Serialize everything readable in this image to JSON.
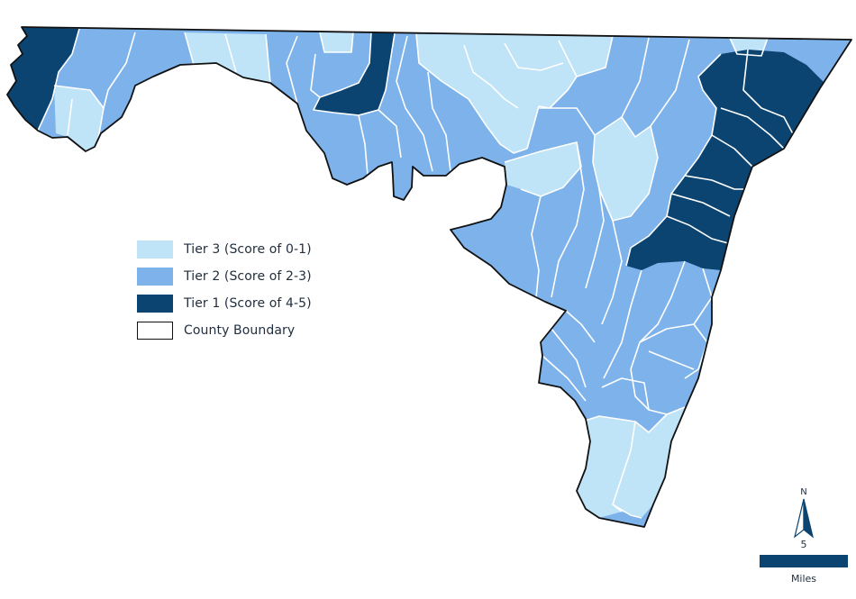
{
  "map": {
    "colors": {
      "tier3": "#bfe3f7",
      "tier2": "#7db2ea",
      "tier1": "#0b4470",
      "subdivision_lines": "#ffffff",
      "county_boundary": "#111111",
      "background": "#ffffff"
    }
  },
  "legend": {
    "items": [
      {
        "label": "Tier 3 (Score of 0-1)",
        "color": "#bfe3f7",
        "outline": "none",
        "icon": "tier3-swatch"
      },
      {
        "label": "Tier 2 (Score of 2-3)",
        "color": "#7db2ea",
        "outline": "none",
        "icon": "tier2-swatch"
      },
      {
        "label": "Tier 1 (Score of 4-5)",
        "color": "#0b4470",
        "outline": "none",
        "icon": "tier1-swatch"
      },
      {
        "label": "County Boundary",
        "color": "#ffffff",
        "outline": "#111111",
        "icon": "county-boundary-swatch"
      }
    ]
  },
  "north_arrow": {
    "letter": "N",
    "icon": "north-arrow-icon"
  },
  "scale_bar": {
    "value": "5",
    "unit": "Miles"
  }
}
